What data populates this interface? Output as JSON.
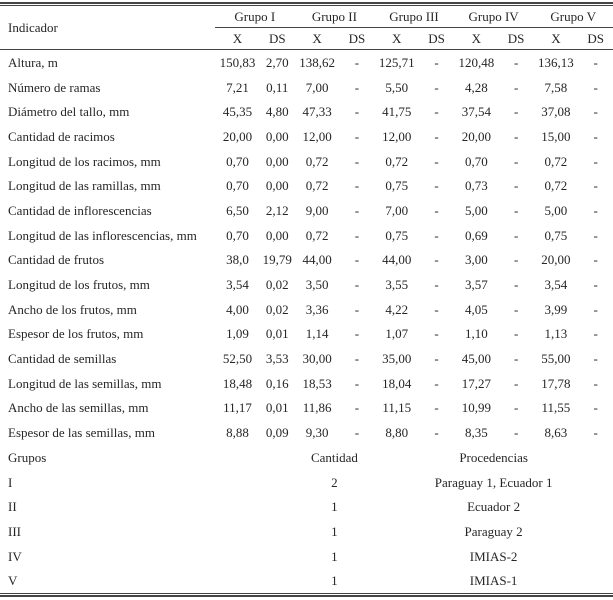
{
  "table": {
    "indicator_header": "Indicador",
    "groups": [
      "Grupo I",
      "Grupo II",
      "Grupo III",
      "Grupo IV",
      "Grupo V"
    ],
    "subheaders": {
      "mean": "X",
      "sd": "DS"
    },
    "rows": [
      {
        "label": "Altura, m",
        "values": [
          "150,83",
          "2,70",
          "138,62",
          "-",
          "125,71",
          "-",
          "120,48",
          "-",
          "136,13",
          "-"
        ]
      },
      {
        "label": "Número de ramas",
        "values": [
          "7,21",
          "0,11",
          "7,00",
          "-",
          "5,50",
          "-",
          "4,28",
          "-",
          "7,58",
          "-"
        ]
      },
      {
        "label": "Diámetro del tallo, mm",
        "values": [
          "45,35",
          "4,80",
          "47,33",
          "-",
          "41,75",
          "-",
          "37,54",
          "-",
          "37,08",
          "-"
        ]
      },
      {
        "label": "Cantidad de racimos",
        "values": [
          "20,00",
          "0,00",
          "12,00",
          "-",
          "12,00",
          "-",
          "20,00",
          "-",
          "15,00",
          "-"
        ]
      },
      {
        "label": "Longitud de los racimos, mm",
        "values": [
          "0,70",
          "0,00",
          "0,72",
          "-",
          "0,72",
          "-",
          "0,70",
          "-",
          "0,72",
          "-"
        ]
      },
      {
        "label": "Longitud de las ramillas, mm",
        "values": [
          "0,70",
          "0,00",
          "0,72",
          "-",
          "0,75",
          "-",
          "0,73",
          "-",
          "0,72",
          "-"
        ]
      },
      {
        "label": "Cantidad de inflorescencias",
        "values": [
          "6,50",
          "2,12",
          "9,00",
          "-",
          "7,00",
          "-",
          "5,00",
          "-",
          "5,00",
          "-"
        ]
      },
      {
        "label": "Longitud de las inflorescencias, mm",
        "values": [
          "0,70",
          "0,00",
          "0,72",
          "-",
          "0,75",
          "-",
          "0,69",
          "-",
          "0,75",
          "-"
        ]
      },
      {
        "label": "Cantidad de frutos",
        "values": [
          "38,0",
          "19,79",
          "44,00",
          "-",
          "44,00",
          "-",
          "3,00",
          "-",
          "20,00",
          "-"
        ]
      },
      {
        "label": "Longitud de los frutos, mm",
        "values": [
          "3,54",
          "0,02",
          "3,50",
          "-",
          "3,55",
          "-",
          "3,57",
          "-",
          "3,54",
          "-"
        ]
      },
      {
        "label": "Ancho de los frutos, mm",
        "values": [
          "4,00",
          "0,02",
          "3,36",
          "-",
          "4,22",
          "-",
          "4,05",
          "-",
          "3,99",
          "-"
        ]
      },
      {
        "label": "Espesor de los frutos, mm",
        "values": [
          "1,09",
          "0,01",
          "1,14",
          "-",
          "1,07",
          "-",
          "1,10",
          "-",
          "1,13",
          "-"
        ]
      },
      {
        "label": "Cantidad de semillas",
        "values": [
          "52,50",
          "3,53",
          "30,00",
          "-",
          "35,00",
          "-",
          "45,00",
          "-",
          "55,00",
          "-"
        ]
      },
      {
        "label": "Longitud de las semillas, mm",
        "values": [
          "18,48",
          "0,16",
          "18,53",
          "-",
          "18,04",
          "-",
          "17,27",
          "-",
          "17,78",
          "-"
        ]
      },
      {
        "label": "Ancho de las semillas, mm",
        "values": [
          "11,17",
          "0,01",
          "11,86",
          "-",
          "11,15",
          "-",
          "10,99",
          "-",
          "11,55",
          "-"
        ]
      },
      {
        "label": "Espesor de las semillas, mm",
        "values": [
          "8,88",
          "0,09",
          "9,30",
          "-",
          "8,80",
          "-",
          "8,35",
          "-",
          "8,63",
          "-"
        ]
      }
    ]
  },
  "groups_section": {
    "header": {
      "groups": "Grupos",
      "cantidad": "Cantidad",
      "procedencias": "Procedencias"
    },
    "rows": [
      {
        "group": "I",
        "cantidad": "2",
        "procedencias": "Paraguay 1, Ecuador 1"
      },
      {
        "group": "II",
        "cantidad": "1",
        "procedencias": "Ecuador 2"
      },
      {
        "group": "III",
        "cantidad": "1",
        "procedencias": "Paraguay 2"
      },
      {
        "group": "IV",
        "cantidad": "1",
        "procedencias": "IMIAS-2"
      },
      {
        "group": "V",
        "cantidad": "1",
        "procedencias": "IMIAS-1"
      }
    ]
  }
}
